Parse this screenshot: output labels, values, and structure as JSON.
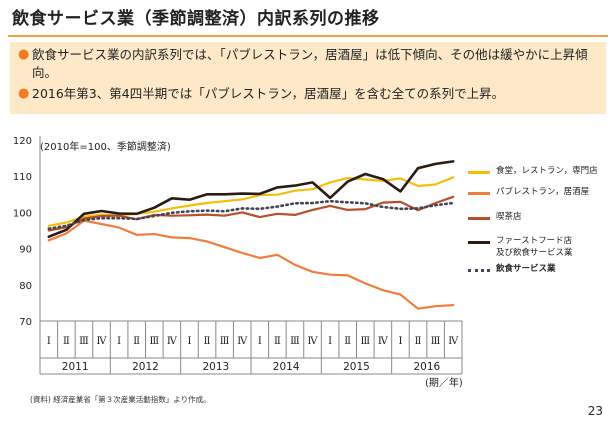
{
  "slide": {
    "title": "飲食サービス業（季節調整済）内訳系列の推移",
    "bullets": [
      "飲食サービス業の内訳系列では、「パブレストラン，居酒屋」は低下傾向、その他は緩やかに上昇傾向。",
      "2016年第3、第4四半期では「パブレストラン，居酒屋」を含む全ての系列で上昇。"
    ],
    "source": "(資料) 経済産業省「第３次産業活動指数」より作成。",
    "page_number": "23"
  },
  "chart_data": {
    "type": "line",
    "note": "(2010年=100、季節調整済)",
    "x_unit": "(期／年)",
    "quarters": [
      "Ⅰ",
      "Ⅱ",
      "Ⅲ",
      "Ⅳ",
      "Ⅰ",
      "Ⅱ",
      "Ⅲ",
      "Ⅳ",
      "Ⅰ",
      "Ⅱ",
      "Ⅲ",
      "Ⅳ",
      "Ⅰ",
      "Ⅱ",
      "Ⅲ",
      "Ⅳ",
      "Ⅰ",
      "Ⅱ",
      "Ⅲ",
      "Ⅳ",
      "Ⅰ",
      "Ⅱ",
      "Ⅲ",
      "Ⅳ"
    ],
    "years": [
      "2011",
      "2012",
      "2013",
      "2014",
      "2015",
      "2016"
    ],
    "yticks": [
      70,
      80,
      90,
      100,
      110,
      120
    ],
    "ylim": [
      70,
      120
    ],
    "grid": false,
    "legend_position": "right",
    "series": [
      {
        "name": "食堂，レストラン，専門店",
        "color": "#f5be0b",
        "style": "solid",
        "width": 2.2,
        "values": [
          96.3,
          97.2,
          98.8,
          99.4,
          99.2,
          99.6,
          100.2,
          101.1,
          101.9,
          102.6,
          103.1,
          103.6,
          104.8,
          104.9,
          106.0,
          106.4,
          108.3,
          109.5,
          109.1,
          108.7,
          109.4,
          107.3,
          107.7,
          109.7
        ]
      },
      {
        "name": "パブレストラン，居酒屋",
        "color": "#f07d3c",
        "style": "solid",
        "width": 2.2,
        "values": [
          92.3,
          94.2,
          97.7,
          96.8,
          95.8,
          93.8,
          94.0,
          93.1,
          92.9,
          92.0,
          90.4,
          88.8,
          87.4,
          88.3,
          85.5,
          83.6,
          82.8,
          82.6,
          80.4,
          78.5,
          77.3,
          73.4,
          74.1,
          74.4
        ]
      },
      {
        "name": "喫茶店",
        "color": "#b5502a",
        "style": "solid",
        "width": 2.2,
        "values": [
          95.0,
          95.9,
          98.3,
          99.0,
          99.1,
          98.1,
          99.3,
          99.1,
          99.2,
          99.4,
          99.1,
          100.0,
          98.7,
          99.6,
          99.3,
          100.7,
          101.8,
          100.7,
          100.9,
          102.7,
          102.9,
          100.6,
          102.6,
          104.3
        ]
      },
      {
        "name": "ファーストフード店\n及び飲食サービス業",
        "color": "#2a1c14",
        "style": "solid",
        "width": 2.6,
        "values": [
          93.3,
          95.2,
          99.6,
          100.4,
          99.7,
          99.6,
          101.3,
          103.9,
          103.5,
          105.0,
          105.0,
          105.2,
          105.1,
          106.9,
          107.4,
          108.3,
          104.0,
          108.5,
          110.6,
          109.2,
          105.8,
          112.2,
          113.4,
          114.1
        ]
      },
      {
        "name": "飲食サービス業",
        "color": "#434355",
        "style": "dotted",
        "width": 2.6,
        "bold_label": true,
        "values": [
          95.5,
          96.3,
          97.9,
          98.4,
          98.4,
          98.2,
          99.0,
          99.9,
          100.3,
          100.5,
          100.3,
          101.1,
          101.0,
          101.6,
          102.5,
          102.6,
          103.1,
          102.8,
          102.5,
          101.5,
          101.0,
          101.1,
          102.0,
          102.6
        ]
      }
    ]
  }
}
